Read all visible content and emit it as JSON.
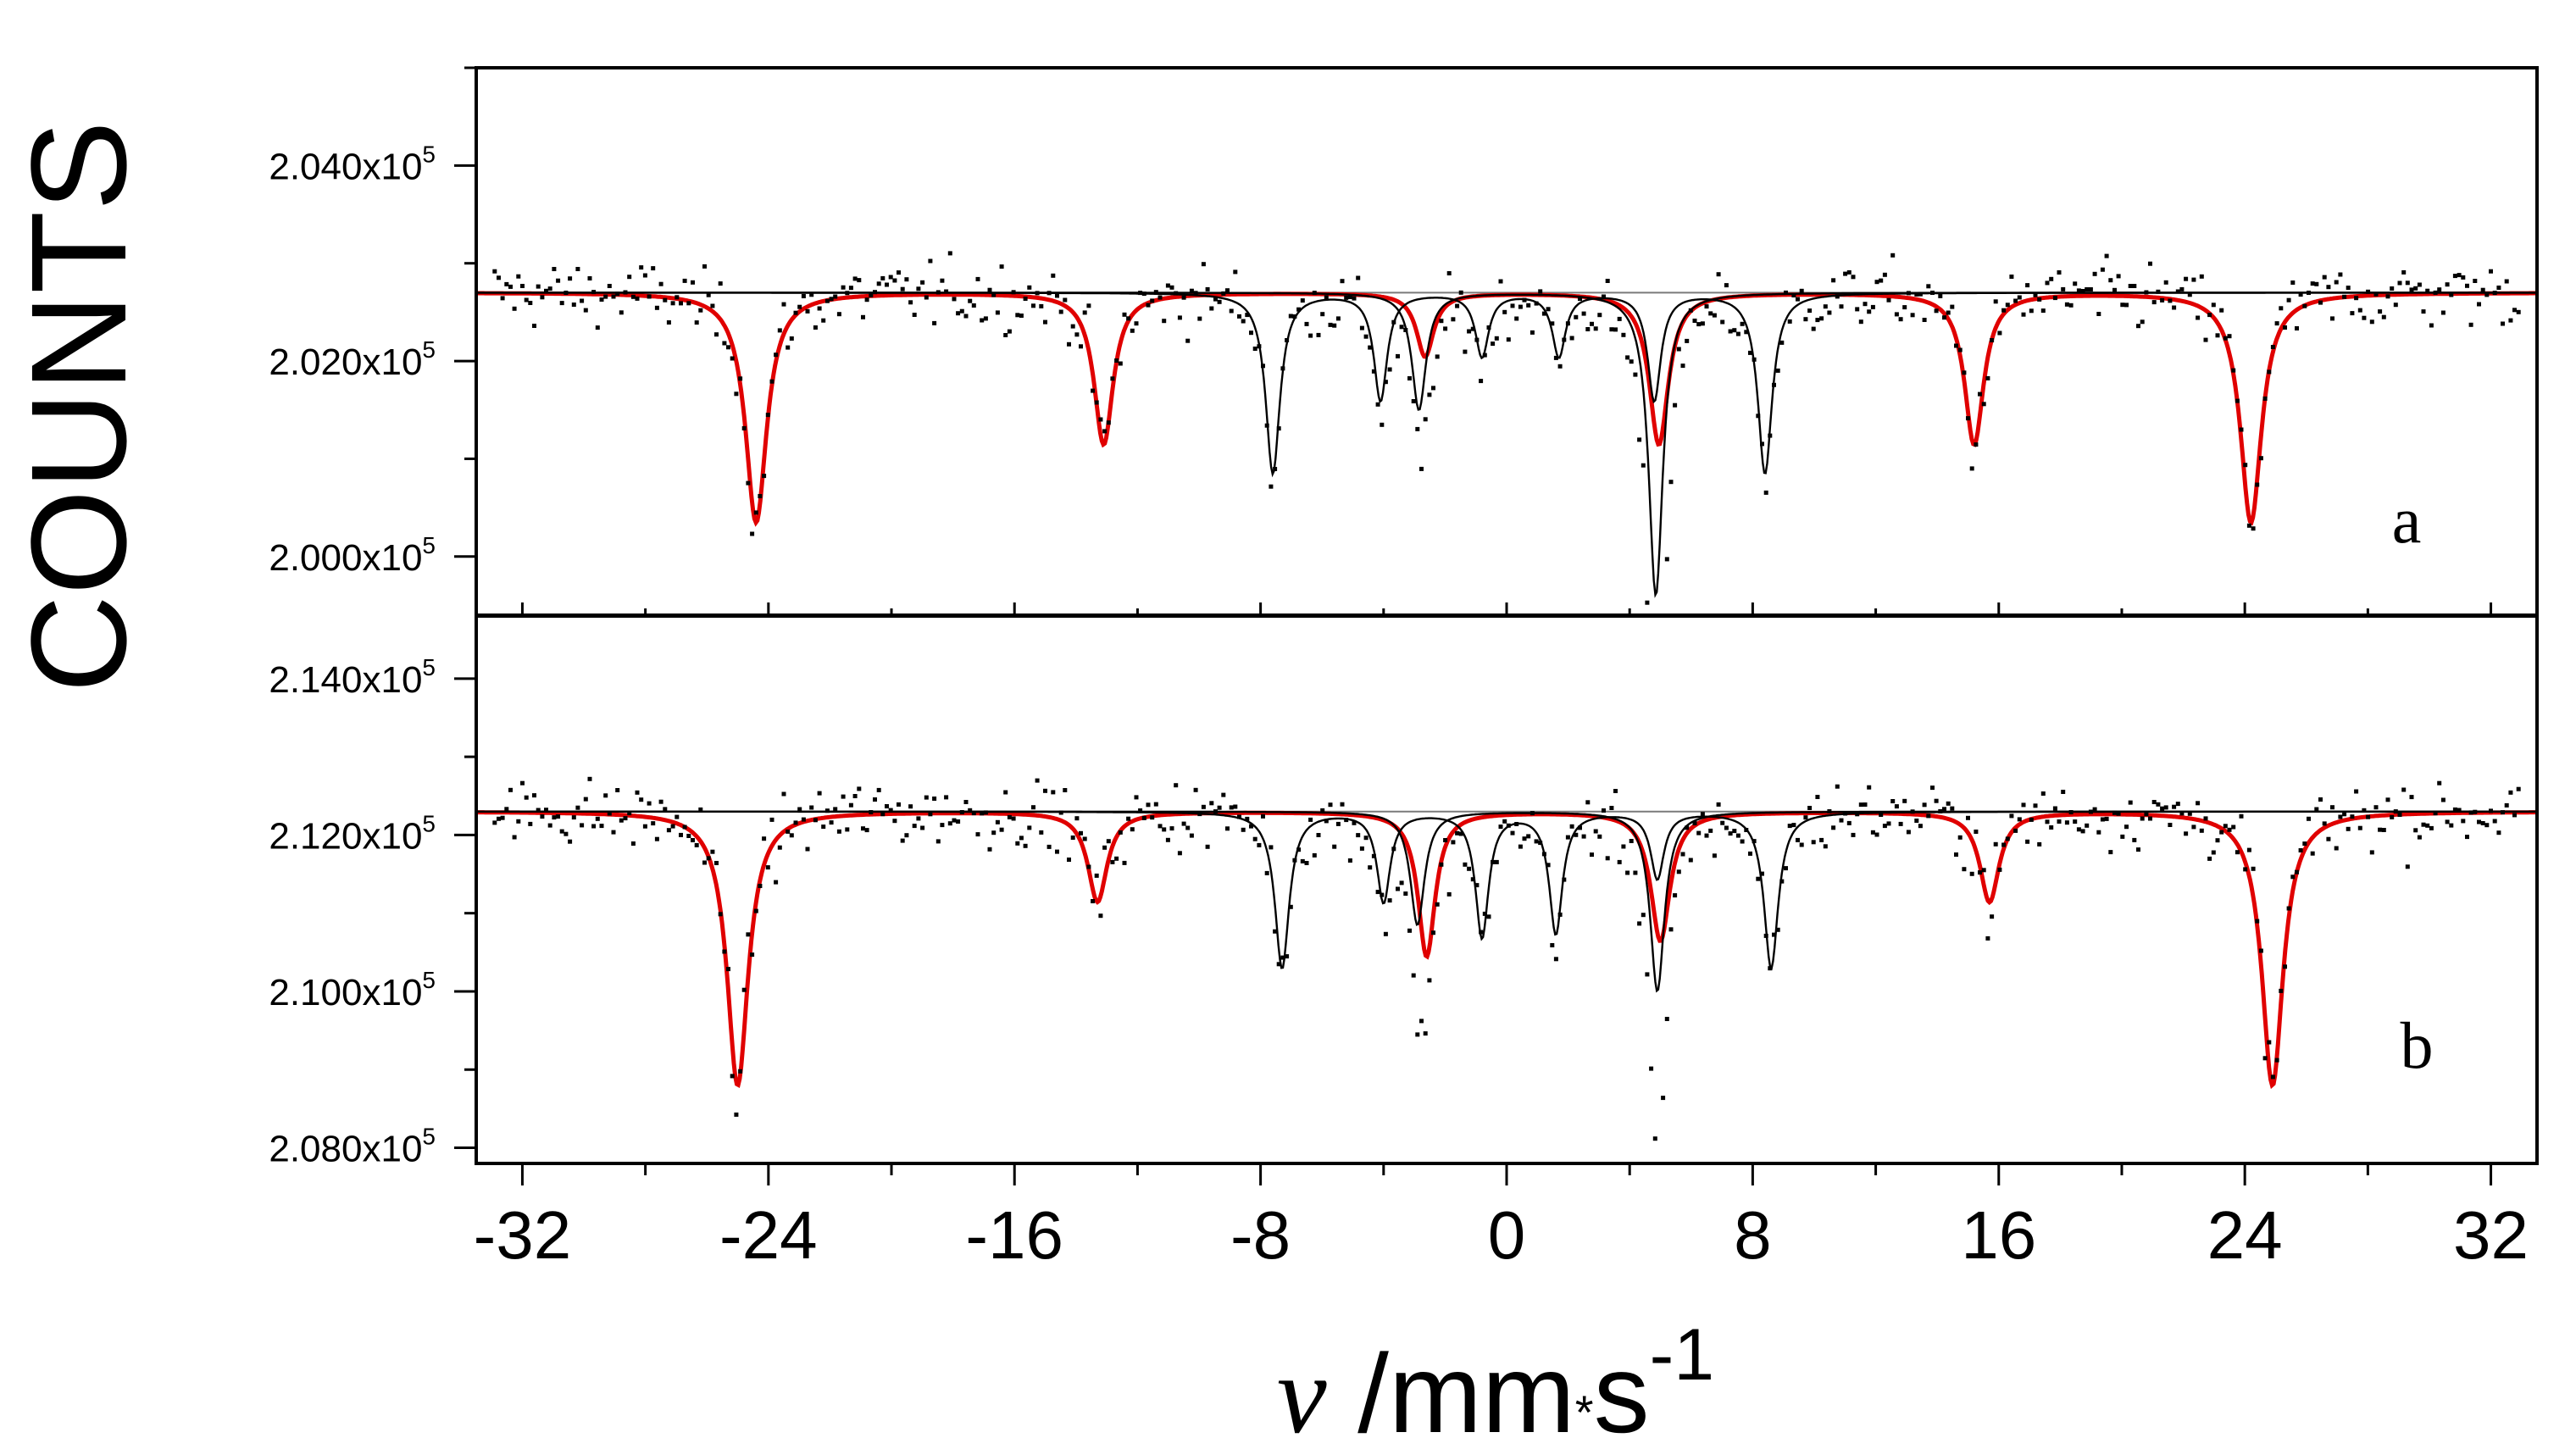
{
  "chart_data": {
    "type": "scatter",
    "ylabel": "COUNTS",
    "xlabel": {
      "var": "v",
      "unit": " /mm",
      "dot": "*",
      "unit2": "s",
      "exp": "-1"
    },
    "xlim": [
      -33.5,
      33.5
    ],
    "x_ticks": [
      -32,
      -24,
      -16,
      -8,
      0,
      8,
      16,
      24,
      32
    ],
    "x_tick_labels": [
      "-32",
      "-24",
      "-16",
      "-8",
      "0",
      "8",
      "16",
      "24",
      "32"
    ],
    "tick_mantissa_suffix": "x10",
    "tick_exponent": "5",
    "panels": [
      {
        "label": "a",
        "ylim": [
          199400,
          205000
        ],
        "y_ticks": [
          200000,
          202000,
          204000
        ],
        "y_tick_labels": [
          "2.000",
          "2.020",
          "2.040"
        ],
        "baseline": 202700,
        "series": [
          {
            "name": "sextet (red)",
            "color": "#e00000",
            "peaks": [
              {
                "x": -24.4,
                "depth": 2350,
                "width": 0.42
              },
              {
                "x": -13.1,
                "depth": 1550,
                "width": 0.38
              },
              {
                "x": -2.65,
                "depth": 650,
                "width": 0.34
              },
              {
                "x": 4.95,
                "depth": 1550,
                "width": 0.38
              },
              {
                "x": 15.2,
                "depth": 1550,
                "width": 0.38
              },
              {
                "x": 24.2,
                "depth": 2350,
                "width": 0.42
              }
            ]
          },
          {
            "name": "subspectrum 1",
            "color": "#000000",
            "peaks": [
              {
                "x": -7.6,
                "depth": 1850,
                "width": 0.28
              },
              {
                "x": -4.1,
                "depth": 1100,
                "width": 0.26
              },
              {
                "x": -0.8,
                "depth": 650,
                "width": 0.26
              },
              {
                "x": 1.7,
                "depth": 650,
                "width": 0.26
              },
              {
                "x": 4.8,
                "depth": 1100,
                "width": 0.26
              },
              {
                "x": 8.4,
                "depth": 1850,
                "width": 0.28
              }
            ]
          },
          {
            "name": "subspectrum 2",
            "color": "#000000",
            "peaks": [
              {
                "x": -2.85,
                "depth": 1200,
                "width": 0.28
              },
              {
                "x": 4.85,
                "depth": 3100,
                "width": 0.28
              }
            ]
          }
        ]
      },
      {
        "label": "b",
        "ylim": [
          207800,
          214800
        ],
        "y_ticks": [
          208000,
          210000,
          212000,
          214000
        ],
        "y_tick_labels": [
          "2.080",
          "2.100",
          "2.120",
          "2.140"
        ],
        "baseline": 212300,
        "series": [
          {
            "name": "sextet (red)",
            "color": "#e00000",
            "peaks": [
              {
                "x": -25.0,
                "depth": 3500,
                "width": 0.42
              },
              {
                "x": -13.3,
                "depth": 1150,
                "width": 0.38
              },
              {
                "x": -2.6,
                "depth": 1850,
                "width": 0.34
              },
              {
                "x": 5.0,
                "depth": 1650,
                "width": 0.38
              },
              {
                "x": 15.7,
                "depth": 1150,
                "width": 0.38
              },
              {
                "x": 24.9,
                "depth": 3500,
                "width": 0.42
              }
            ]
          },
          {
            "name": "subspectrum 1",
            "color": "#000000",
            "peaks": [
              {
                "x": -7.3,
                "depth": 2000,
                "width": 0.28
              },
              {
                "x": -4.0,
                "depth": 1150,
                "width": 0.26
              },
              {
                "x": -0.8,
                "depth": 1600,
                "width": 0.26
              },
              {
                "x": 1.6,
                "depth": 1550,
                "width": 0.26
              },
              {
                "x": 4.9,
                "depth": 850,
                "width": 0.26
              },
              {
                "x": 8.6,
                "depth": 2000,
                "width": 0.28
              }
            ]
          },
          {
            "name": "subspectrum 2",
            "color": "#000000",
            "peaks": [
              {
                "x": -2.9,
                "depth": 1450,
                "width": 0.28
              },
              {
                "x": 4.9,
                "depth": 2300,
                "width": 0.28
              }
            ]
          }
        ]
      }
    ]
  }
}
